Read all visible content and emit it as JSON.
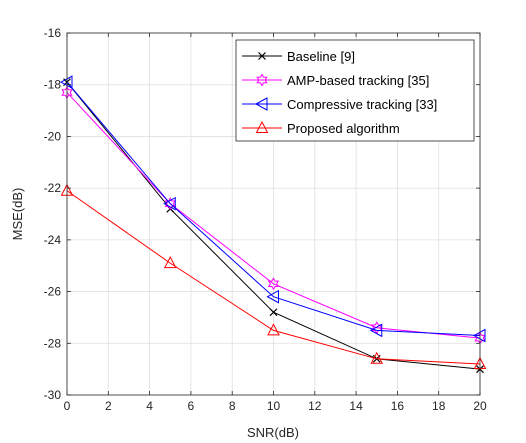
{
  "chart_data": {
    "type": "line",
    "title": "",
    "xlabel": "SNR(dB)",
    "ylabel": "MSE(dB)",
    "xlim": [
      0,
      20
    ],
    "ylim": [
      -30,
      -16
    ],
    "xticks": [
      "0",
      "2",
      "4",
      "6",
      "8",
      "10",
      "12",
      "14",
      "16",
      "18",
      "20"
    ],
    "yticks": [
      "-16",
      "-18",
      "-20",
      "-22",
      "-24",
      "-26",
      "-28",
      "-30"
    ],
    "grid": true,
    "legend_position": "top-right",
    "x": [
      0,
      5,
      10,
      15,
      20
    ],
    "series": [
      {
        "name": "Baseline [9]",
        "values": [
          -17.9,
          -22.8,
          -26.8,
          -28.6,
          -29.0
        ],
        "color": "#000000",
        "marker": "x"
      },
      {
        "name": "AMP-based tracking [35]",
        "values": [
          -18.3,
          -22.6,
          -25.7,
          -27.4,
          -27.8
        ],
        "color": "#ff00ff",
        "marker": "hexagram"
      },
      {
        "name": "Compressive tracking [33]",
        "values": [
          -17.9,
          -22.6,
          -26.2,
          -27.5,
          -27.7
        ],
        "color": "#0000ff",
        "marker": "triangle-left"
      },
      {
        "name": "Proposed algorithm",
        "values": [
          -22.1,
          -24.9,
          -27.5,
          -28.6,
          -28.8
        ],
        "color": "#ff0000",
        "marker": "triangle-up"
      }
    ]
  }
}
